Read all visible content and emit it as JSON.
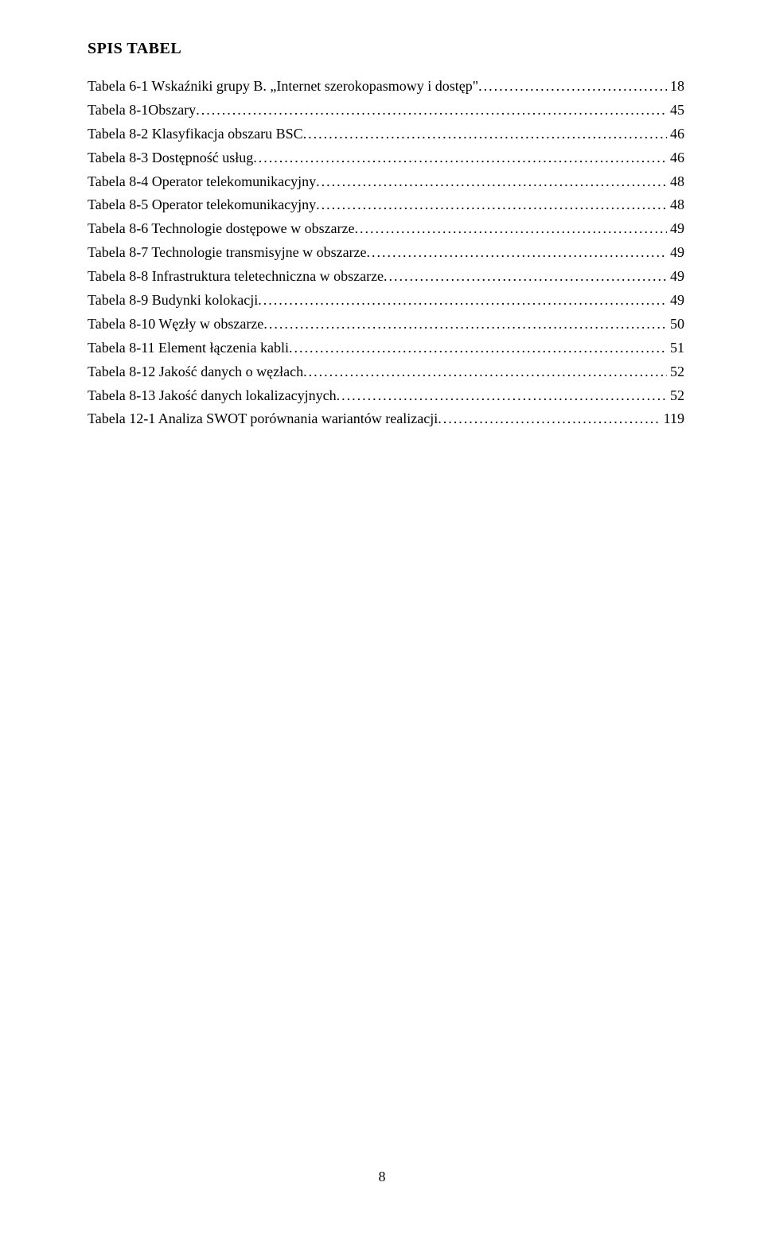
{
  "title": "SPIS TABEL",
  "entries": [
    {
      "label": "Tabela 6-1 Wskaźniki grupy B. „Internet szerokopasmowy i dostęp\"",
      "page": "18"
    },
    {
      "label": "Tabela 8-1Obszary",
      "page": "45"
    },
    {
      "label": "Tabela 8-2 Klasyfikacja obszaru BSC",
      "page": "46"
    },
    {
      "label": "Tabela 8-3 Dostępność usług",
      "page": "46"
    },
    {
      "label": "Tabela 8-4 Operator telekomunikacyjny",
      "page": "48"
    },
    {
      "label": "Tabela 8-5 Operator telekomunikacyjny",
      "page": "48"
    },
    {
      "label": "Tabela 8-6 Technologie dostępowe w obszarze",
      "page": "49"
    },
    {
      "label": "Tabela 8-7 Technologie transmisyjne w obszarze",
      "page": "49"
    },
    {
      "label": "Tabela 8-8 Infrastruktura teletechniczna w obszarze",
      "page": "49"
    },
    {
      "label": "Tabela 8-9 Budynki kolokacji",
      "page": "49"
    },
    {
      "label": "Tabela 8-10 Węzły w obszarze",
      "page": "50"
    },
    {
      "label": "Tabela 8-11 Element łączenia kabli",
      "page": "51"
    },
    {
      "label": "Tabela 8-12 Jakość danych o węzłach",
      "page": "52"
    },
    {
      "label": "Tabela 8-13 Jakość danych lokalizacyjnych",
      "page": "52"
    },
    {
      "label": "Tabela 12-1 Analiza SWOT porównania wariantów realizacji",
      "page": "119"
    }
  ],
  "pageNumber": "8"
}
